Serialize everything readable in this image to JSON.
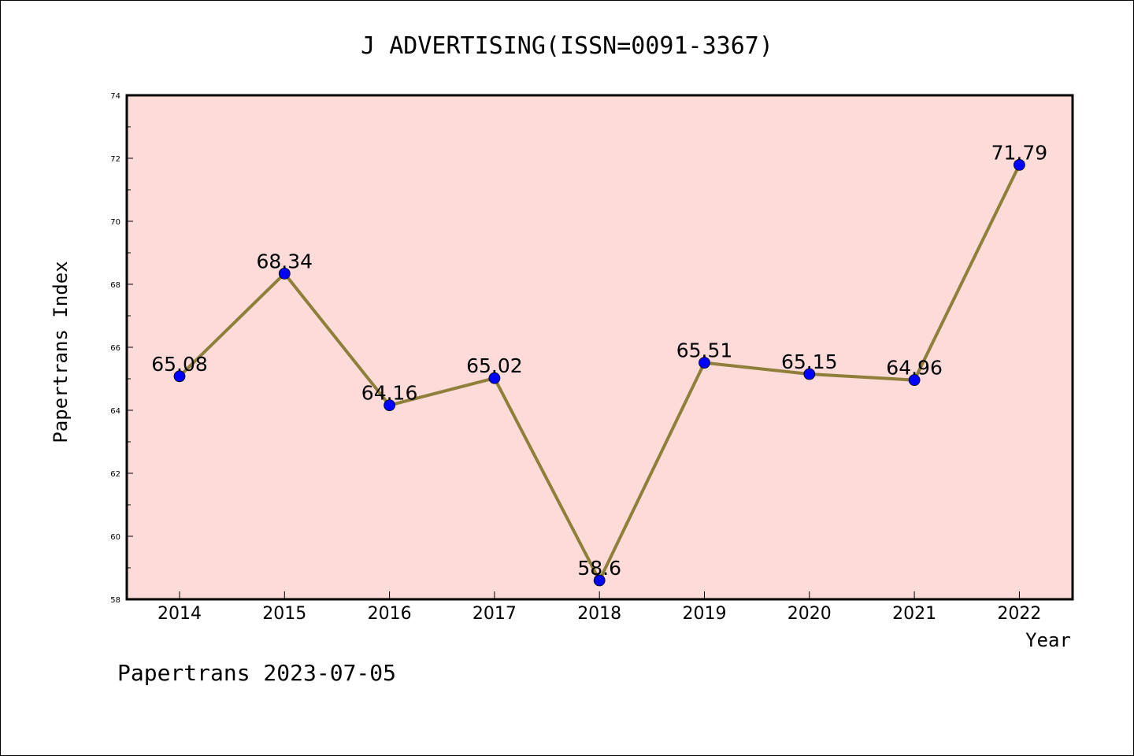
{
  "chart_data": {
    "type": "line",
    "title": "J ADVERTISING(ISSN=0091-3367)",
    "xlabel": "Year",
    "ylabel": "Papertrans Index",
    "categories": [
      "2014",
      "2015",
      "2016",
      "2017",
      "2018",
      "2019",
      "2020",
      "2021",
      "2022"
    ],
    "values": [
      65.08,
      68.34,
      64.16,
      65.02,
      58.6,
      65.51,
      65.15,
      64.96,
      71.79
    ],
    "value_labels": [
      "65.08",
      "68.34",
      "64.16",
      "65.02",
      "58.6",
      "65.51",
      "65.15",
      "64.96",
      "71.79"
    ],
    "ylim": [
      58,
      74
    ],
    "yticks": [
      58,
      60,
      62,
      64,
      66,
      68,
      70,
      72,
      74
    ],
    "grid": false,
    "colors": {
      "plot_background": "#fddbd9",
      "line": "#8f7f3a",
      "marker": "#0000ff"
    }
  },
  "footer": "Papertrans 2023-07-05"
}
